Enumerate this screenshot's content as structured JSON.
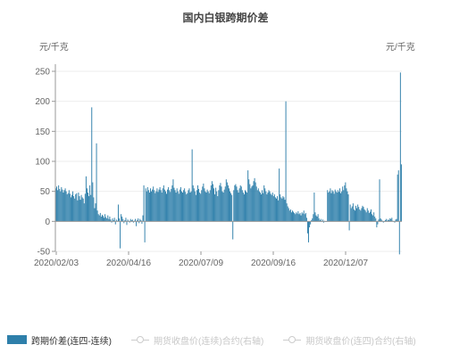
{
  "chart_data": {
    "type": "bar",
    "title": "国内白银跨期价差",
    "unit_left": "元/千克",
    "unit_right": "元/千克",
    "ylim": [
      -50,
      250
    ],
    "yticks": [
      -50,
      0,
      50,
      100,
      150,
      200,
      250
    ],
    "xtick_labels": [
      "2020/02/03",
      "2020/04/16",
      "2020/07/09",
      "2020/09/16",
      "2020/12/07"
    ],
    "grid": "horizontal",
    "legend_position": "bottom",
    "colors": {
      "bar": "#2e7faa",
      "axis": "#999999",
      "disabled": "#cccccc"
    },
    "series": [
      {
        "name": "跨期价差(连四-连续)",
        "type": "bar",
        "values": [
          55,
          58,
          52,
          60,
          54,
          50,
          57,
          53,
          48,
          52,
          55,
          50,
          45,
          47,
          52,
          46,
          40,
          44,
          50,
          42,
          38,
          45,
          47,
          35,
          48,
          42,
          36,
          44,
          40,
          38,
          30,
          46,
          75,
          55,
          48,
          42,
          60,
          44,
          190,
          65,
          40,
          22,
          30,
          130,
          18,
          12,
          10,
          14,
          8,
          11,
          9,
          6,
          12,
          7,
          5,
          10,
          4,
          8,
          3,
          -2,
          5,
          2,
          6,
          -5,
          3,
          1,
          28,
          5,
          -45,
          12,
          8,
          4,
          -3,
          2,
          6,
          -6,
          3,
          1,
          -2,
          4,
          2,
          3,
          -2,
          1,
          4,
          -8,
          2,
          5,
          -3,
          4,
          2,
          -4,
          10,
          60,
          -35,
          55,
          50,
          57,
          52,
          48,
          55,
          50,
          53,
          58,
          52,
          47,
          50,
          55,
          49,
          53,
          57,
          52,
          48,
          55,
          60,
          53,
          50,
          46,
          53,
          57,
          52,
          49,
          54,
          60,
          70,
          56,
          52,
          48,
          55,
          50,
          46,
          53,
          57,
          50,
          48,
          52,
          55,
          49,
          45,
          47,
          52,
          55,
          48,
          50,
          120,
          60,
          55,
          50,
          44,
          52,
          60,
          54,
          48,
          46,
          52,
          58,
          63,
          55,
          50,
          48,
          53,
          50,
          47,
          52,
          60,
          67,
          62,
          55,
          45,
          56,
          50,
          42,
          52,
          60,
          64,
          58,
          50,
          48,
          53,
          58,
          70,
          65,
          60,
          55,
          50,
          47,
          44,
          -30,
          52,
          60,
          62,
          58,
          52,
          48,
          55,
          60,
          58,
          52,
          48,
          45,
          52,
          50,
          48,
          85,
          70,
          62,
          55,
          58,
          60,
          67,
          72,
          65,
          58,
          52,
          55,
          50,
          48,
          45,
          52,
          47,
          60,
          55,
          50,
          45,
          48,
          52,
          50,
          46,
          44,
          48,
          42,
          45,
          40,
          38,
          42,
          35,
          88,
          45,
          40,
          38,
          42,
          40,
          36,
          200,
          30,
          25,
          22,
          18,
          20,
          15,
          18,
          16,
          14,
          12,
          15,
          13,
          17,
          12,
          14,
          10,
          15,
          13,
          18,
          12,
          14,
          6,
          -20,
          -35,
          -10,
          -5,
          2,
          5,
          12,
          48,
          15,
          10,
          8,
          12,
          5,
          2,
          4,
          0,
          3,
          -2,
          1,
          0,
          0,
          52,
          48,
          50,
          55,
          47,
          52,
          50,
          46,
          53,
          50,
          48,
          52,
          49,
          55,
          47,
          50,
          58,
          52,
          60,
          65,
          55,
          50,
          45,
          -15,
          28,
          22,
          25,
          30,
          20,
          18,
          26,
          22,
          28,
          24,
          20,
          18,
          22,
          26,
          24,
          20,
          18,
          15,
          22,
          18,
          14,
          16,
          20,
          12,
          10,
          15,
          8,
          5,
          -10,
          -5,
          3,
          70,
          5,
          3,
          1,
          -2,
          0,
          2,
          4,
          1,
          3,
          2,
          5,
          4,
          6,
          1,
          0,
          -2,
          3,
          4,
          78,
          85,
          -55,
          248,
          95
        ]
      },
      {
        "name": "期货收盘价(连续)合约(右轴)",
        "type": "line",
        "enabled": false,
        "values": []
      },
      {
        "name": "期货收盘价(连四)合约(右轴)",
        "type": "line",
        "enabled": false,
        "values": []
      }
    ]
  }
}
